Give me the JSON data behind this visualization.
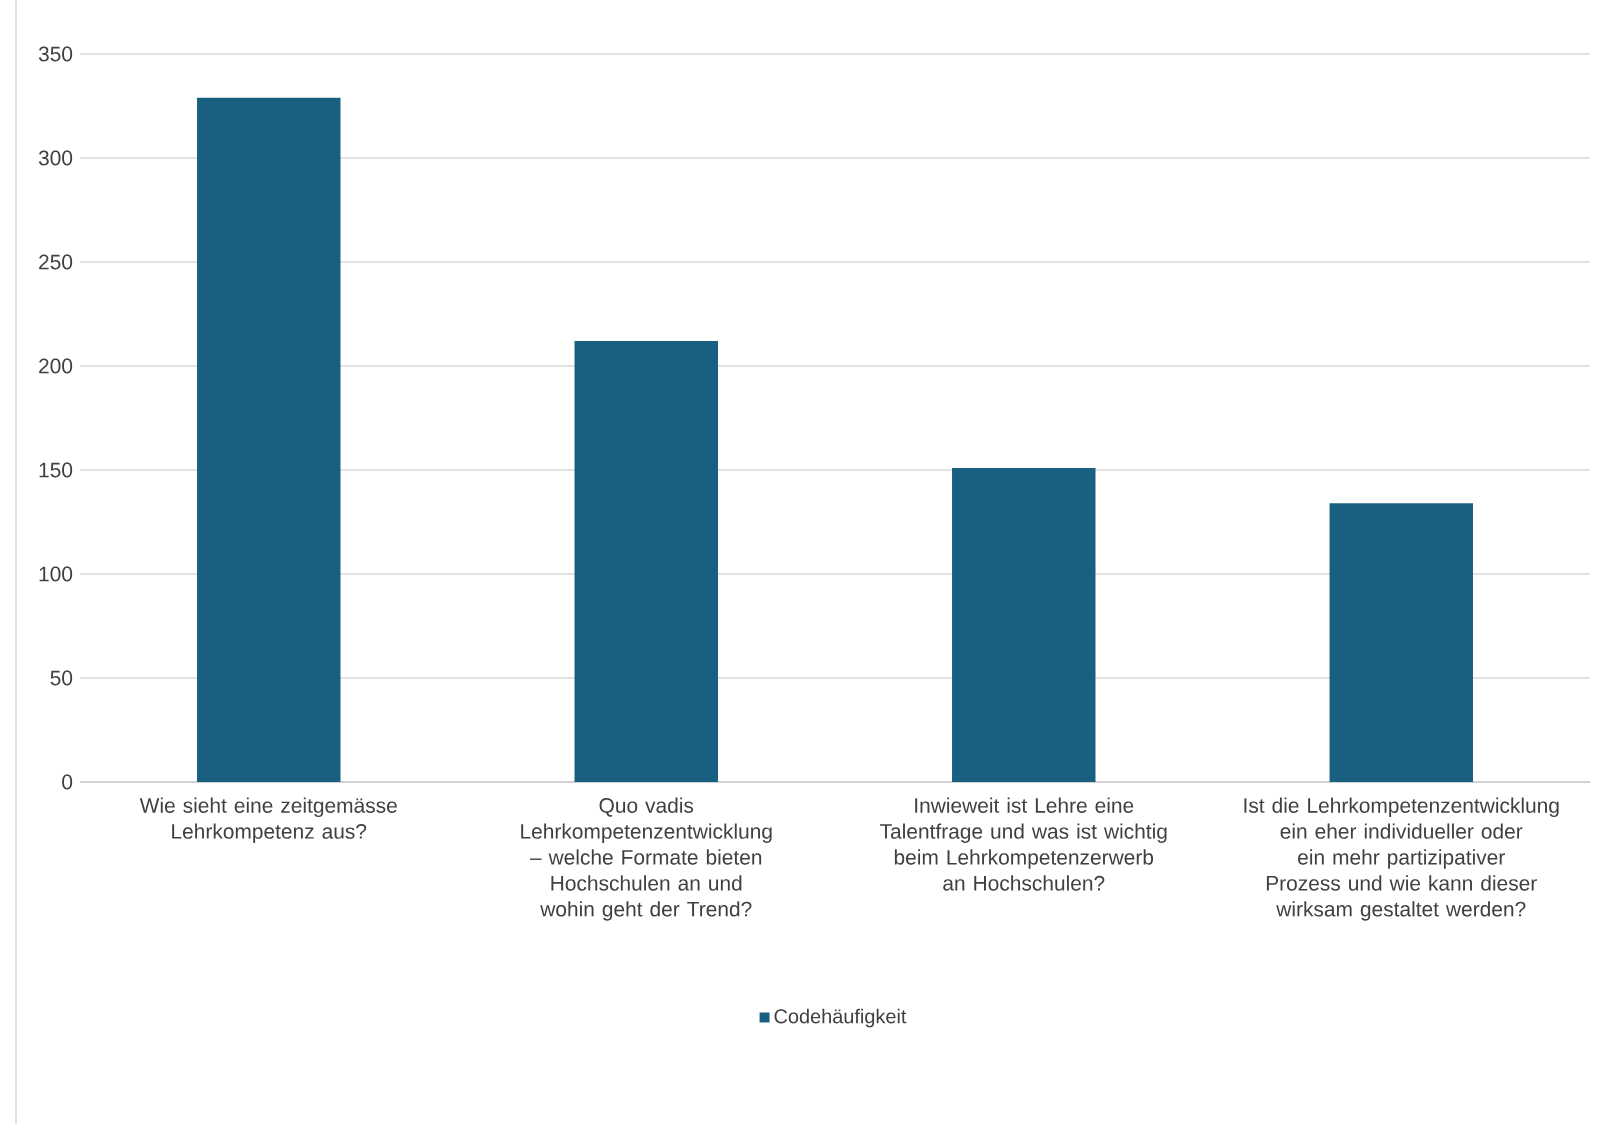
{
  "chart_data": {
    "type": "bar",
    "categories": [
      "Wie sieht eine zeitgemässe Lehrkompetenz aus?",
      "Quo vadis Lehrkompetenzentwicklung – welche Formate bieten Hochschulen an und wohin geht der Trend?",
      "Inwieweit ist Lehre eine Talentfrage und was ist wichtig beim Lehrkompetenzerwerb an Hochschulen?",
      "Ist die Lehrkompetenzentwicklung ein eher individueller oder ein mehr partizipativer Prozess und wie kann dieser wirksam gestaltet werden?"
    ],
    "series": [
      {
        "name": "Codehäufigkeit",
        "color": "#185f80",
        "values": [
          329,
          212,
          151,
          134
        ]
      }
    ],
    "ylim": [
      0,
      350
    ],
    "yticks": [
      0,
      50,
      100,
      150,
      200,
      250,
      300,
      350
    ],
    "grid": "y",
    "legend": "bottom"
  }
}
